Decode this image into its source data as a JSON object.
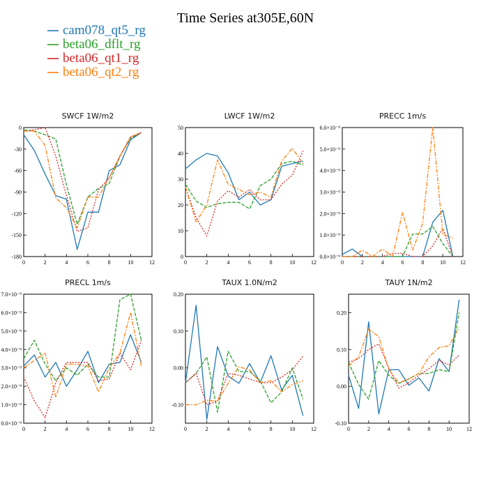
{
  "figure": {
    "title": "Time Series at305E,60N"
  },
  "legend": [
    {
      "name": "cam078_qt5_rg",
      "color": "#1f77b4"
    },
    {
      "name": "beta06_dflt_rg",
      "color": "#2ca02c"
    },
    {
      "name": "beta06_qt1_rg",
      "color": "#d62728"
    },
    {
      "name": "beta06_qt2_rg",
      "color": "#ff7f0e"
    }
  ],
  "chart_data": [
    {
      "type": "line",
      "title": "SWCF 1W/m2",
      "xlim": [
        0,
        12
      ],
      "ylim": [
        -180,
        0
      ],
      "xticks": [
        0,
        2,
        4,
        6,
        8,
        10,
        12
      ],
      "yticks": [
        0,
        -30,
        -60,
        -90,
        -120,
        -150,
        -180
      ],
      "ytick_labels": [
        "0",
        "-30",
        "-60",
        "-90",
        "-120",
        "-150",
        "-180"
      ],
      "x": [
        0,
        1,
        2,
        3,
        4,
        5,
        6,
        7,
        8,
        9,
        10,
        11
      ],
      "series": [
        {
          "name": "cam078_qt5_rg",
          "color": "#1f77b4",
          "dash": "",
          "values": [
            -10,
            -32,
            -65,
            -95,
            -100,
            -170,
            -118,
            -118,
            -60,
            -52,
            -17,
            -7
          ]
        },
        {
          "name": "beta06_dflt_rg",
          "color": "#2ca02c",
          "dash": "5 2",
          "values": [
            -3,
            -5,
            -10,
            -16,
            -80,
            -135,
            -97,
            -85,
            -78,
            -40,
            -15,
            -7
          ]
        },
        {
          "name": "beta06_qt1_rg",
          "color": "#d62728",
          "dash": "2 2",
          "values": [
            -5,
            -3,
            0,
            -40,
            -95,
            -145,
            -140,
            -87,
            -70,
            -40,
            -13,
            -7
          ]
        },
        {
          "name": "beta06_qt2_rg",
          "color": "#ff7f0e",
          "dash": "6 2 2 2",
          "values": [
            -5,
            -5,
            -25,
            -98,
            -112,
            -140,
            -97,
            -97,
            -70,
            -40,
            -13,
            -7
          ]
        }
      ]
    },
    {
      "type": "line",
      "title": "LWCF 1W/m2",
      "xlim": [
        0,
        12
      ],
      "ylim": [
        0,
        50
      ],
      "xticks": [
        0,
        2,
        4,
        6,
        8,
        10,
        12
      ],
      "yticks": [
        0,
        10,
        20,
        30,
        40,
        50
      ],
      "ytick_labels": [
        "0",
        "10",
        "20",
        "30",
        "40",
        "50"
      ],
      "x": [
        0,
        1,
        2,
        3,
        4,
        5,
        6,
        7,
        8,
        9,
        10,
        11
      ],
      "series": [
        {
          "name": "cam078_qt5_rg",
          "color": "#1f77b4",
          "dash": "",
          "values": [
            34,
            37.5,
            40,
            39,
            32.5,
            22,
            25,
            20,
            22,
            35,
            36,
            37
          ]
        },
        {
          "name": "beta06_dflt_rg",
          "color": "#2ca02c",
          "dash": "5 2",
          "values": [
            28,
            21.5,
            19,
            20.5,
            21,
            21,
            18.5,
            27.5,
            30,
            36,
            37,
            35.5
          ]
        },
        {
          "name": "beta06_qt1_rg",
          "color": "#d62728",
          "dash": "2 2",
          "values": [
            27,
            15,
            8,
            21.5,
            25.5,
            23,
            26,
            22,
            22,
            28,
            31.5,
            41
          ]
        },
        {
          "name": "beta06_qt2_rg",
          "color": "#ff7f0e",
          "dash": "6 2 2 2",
          "values": [
            27,
            13.5,
            20,
            37.5,
            28,
            26,
            24,
            25,
            23,
            37,
            42,
            36
          ]
        }
      ]
    },
    {
      "type": "line",
      "title": "PRECC 1m/s",
      "xlim": [
        0,
        12
      ],
      "ylim": [
        0,
        6e-09
      ],
      "xticks": [
        0,
        2,
        4,
        6,
        8,
        10,
        12
      ],
      "yticks": [
        0,
        1e-09,
        2e-09,
        3e-09,
        4e-09,
        5e-09,
        6e-09
      ],
      "ytick_labels": [
        "0.0×10⁻⁹",
        "1.0×10⁻⁹",
        "2.0×10⁻⁹",
        "3.0×10⁻⁹",
        "4.0×10⁻⁹",
        "5.0×10⁻⁹",
        "6.0×10⁻⁹"
      ],
      "x": [
        0,
        1,
        2,
        3,
        4,
        5,
        6,
        7,
        8,
        9,
        10,
        11
      ],
      "series": [
        {
          "name": "cam078_qt5_rg",
          "color": "#1f77b4",
          "dash": "",
          "values": [
            1e-10,
            3.5e-10,
            0,
            0,
            0,
            0,
            0,
            0,
            0,
            1.6e-09,
            2.15e-09,
            0
          ]
        },
        {
          "name": "beta06_dflt_rg",
          "color": "#2ca02c",
          "dash": "5 2",
          "values": [
            0,
            0,
            0,
            0,
            0,
            0,
            0,
            1.05e-09,
            1.05e-09,
            1.4e-09,
            6e-10,
            0
          ]
        },
        {
          "name": "beta06_qt1_rg",
          "color": "#d62728",
          "dash": "2 2",
          "values": [
            0,
            0,
            0,
            0,
            0,
            1.5e-10,
            1.5e-10,
            0,
            0,
            5e-10,
            1.3e-09,
            0
          ]
        },
        {
          "name": "beta06_qt2_rg",
          "color": "#ff7f0e",
          "dash": "6 2 2 2",
          "values": [
            0,
            0,
            3e-10,
            0,
            3.5e-10,
            0,
            2.05e-09,
            3e-10,
            1.55e-09,
            6e-09,
            1.05e-09,
            8.5e-10
          ]
        }
      ]
    },
    {
      "type": "line",
      "title": "PRECL 1m/s",
      "xlim": [
        0,
        12
      ],
      "ylim": [
        0,
        7e-09
      ],
      "xticks": [
        0,
        2,
        4,
        6,
        8,
        10,
        12
      ],
      "yticks": [
        0,
        1e-09,
        2e-09,
        3e-09,
        4e-09,
        5e-09,
        6e-09,
        7e-09
      ],
      "ytick_labels": [
        "0.0×10⁻⁹",
        "1.0×10⁻⁹",
        "2.0×10⁻⁹",
        "3.0×10⁻⁹",
        "4.0×10⁻⁹",
        "5.0×10⁻⁹",
        "6.0×10⁻⁹",
        "7.0×10⁻⁹"
      ],
      "x": [
        0,
        1,
        2,
        3,
        4,
        5,
        6,
        7,
        8,
        9,
        10,
        11
      ],
      "series": [
        {
          "name": "cam078_qt5_rg",
          "color": "#1f77b4",
          "dash": "",
          "values": [
            3.1e-09,
            3.7e-09,
            2.5e-09,
            3.3e-09,
            2e-09,
            2.9e-09,
            3.9e-09,
            2.2e-09,
            3.2e-09,
            3.3e-09,
            4.8e-09,
            3.3e-09
          ]
        },
        {
          "name": "beta06_dflt_rg",
          "color": "#2ca02c",
          "dash": "5 2",
          "values": [
            3.5e-09,
            4.5e-09,
            3.2e-09,
            2.3e-09,
            3e-09,
            2.6e-09,
            3.2e-09,
            2.5e-09,
            2.5e-09,
            6.7e-09,
            7e-09,
            4.5e-09
          ]
        },
        {
          "name": "beta06_qt1_rg",
          "color": "#d62728",
          "dash": "2 2",
          "values": [
            2.5e-09,
            1.2e-09,
            3e-10,
            2.2e-09,
            3.3e-09,
            3.3e-09,
            3.3e-09,
            2.3e-09,
            2.4e-09,
            3.8e-09,
            2.9e-09,
            4.5e-09
          ]
        },
        {
          "name": "beta06_qt2_rg",
          "color": "#ff7f0e",
          "dash": "6 2 2 2",
          "values": [
            3e-09,
            3.4e-09,
            3.8e-09,
            1.4e-09,
            3.2e-09,
            3.2e-09,
            3.1e-09,
            1.7e-09,
            3e-09,
            3.8e-09,
            6e-09,
            3.1e-09
          ]
        }
      ]
    },
    {
      "type": "line",
      "title": "TAUX 1.0N/m2",
      "xlim": [
        0,
        12
      ],
      "ylim": [
        -0.15,
        0.2
      ],
      "xticks": [
        0,
        2,
        4,
        6,
        8,
        10,
        12
      ],
      "yticks": [
        -0.1,
        0,
        0.1,
        0.2
      ],
      "ytick_labels": [
        "-0.10",
        "0.00",
        "0.10",
        "0.20"
      ],
      "x": [
        0,
        1,
        2,
        3,
        4,
        5,
        6,
        7,
        8,
        9,
        10,
        11
      ],
      "series": [
        {
          "name": "cam078_qt5_rg",
          "color": "#1f77b4",
          "dash": "",
          "values": [
            -0.04,
            0.17,
            -0.14,
            0.058,
            -0.022,
            -0.042,
            0.012,
            -0.04,
            0.033,
            -0.06,
            -0.02,
            -0.13
          ]
        },
        {
          "name": "beta06_dflt_rg",
          "color": "#2ca02c",
          "dash": "5 2",
          "values": [
            -0.04,
            -0.015,
            0.03,
            -0.12,
            0.045,
            -0.01,
            -0.01,
            -0.035,
            -0.095,
            -0.065,
            0.0,
            -0.085
          ]
        },
        {
          "name": "beta06_qt1_rg",
          "color": "#d62728",
          "dash": "2 2",
          "values": [
            -0.04,
            -0.015,
            -0.1,
            -0.09,
            -0.015,
            -0.02,
            -0.03,
            -0.04,
            -0.04,
            -0.025,
            -0.005,
            0.032
          ]
        },
        {
          "name": "beta06_qt2_rg",
          "color": "#ff7f0e",
          "dash": "6 2 2 2",
          "values": [
            -0.1,
            -0.1,
            -0.088,
            -0.09,
            -0.042,
            0.003,
            -0.005,
            -0.04,
            -0.035,
            -0.065,
            -0.045,
            -0.035
          ]
        }
      ]
    },
    {
      "type": "line",
      "title": "TAUY 1N/m2",
      "xlim": [
        0,
        12
      ],
      "ylim": [
        -0.1,
        0.25
      ],
      "xticks": [
        0,
        2,
        4,
        6,
        8,
        10,
        12
      ],
      "yticks": [
        -0.1,
        0,
        0.1,
        0.2
      ],
      "ytick_labels": [
        "-0.10",
        "0.00",
        "0.10",
        "0.20"
      ],
      "x": [
        0,
        1,
        2,
        3,
        4,
        5,
        6,
        7,
        8,
        9,
        10,
        11
      ],
      "series": [
        {
          "name": "cam078_qt5_rg",
          "color": "#1f77b4",
          "dash": "",
          "values": [
            0.03,
            -0.06,
            0.175,
            -0.075,
            0.045,
            0.045,
            0.003,
            0.023,
            -0.013,
            0.075,
            0.04,
            0.235
          ]
        },
        {
          "name": "beta06_dflt_rg",
          "color": "#2ca02c",
          "dash": "5 2",
          "values": [
            0.065,
            0.005,
            -0.035,
            0.07,
            0.03,
            0.008,
            0.02,
            0.035,
            0.035,
            0.045,
            0.04,
            0.2
          ]
        },
        {
          "name": "beta06_qt1_rg",
          "color": "#d62728",
          "dash": "2 2",
          "values": [
            0.065,
            0.075,
            0.1,
            0.115,
            0.05,
            -0.005,
            0.01,
            0.03,
            0.048,
            0.07,
            0.058,
            0.085
          ]
        },
        {
          "name": "beta06_qt2_rg",
          "color": "#ff7f0e",
          "dash": "6 2 2 2",
          "values": [
            0.055,
            0.08,
            0.155,
            0.135,
            0.045,
            0.01,
            0.02,
            0.035,
            0.08,
            0.105,
            0.11,
            0.16
          ]
        }
      ]
    }
  ]
}
